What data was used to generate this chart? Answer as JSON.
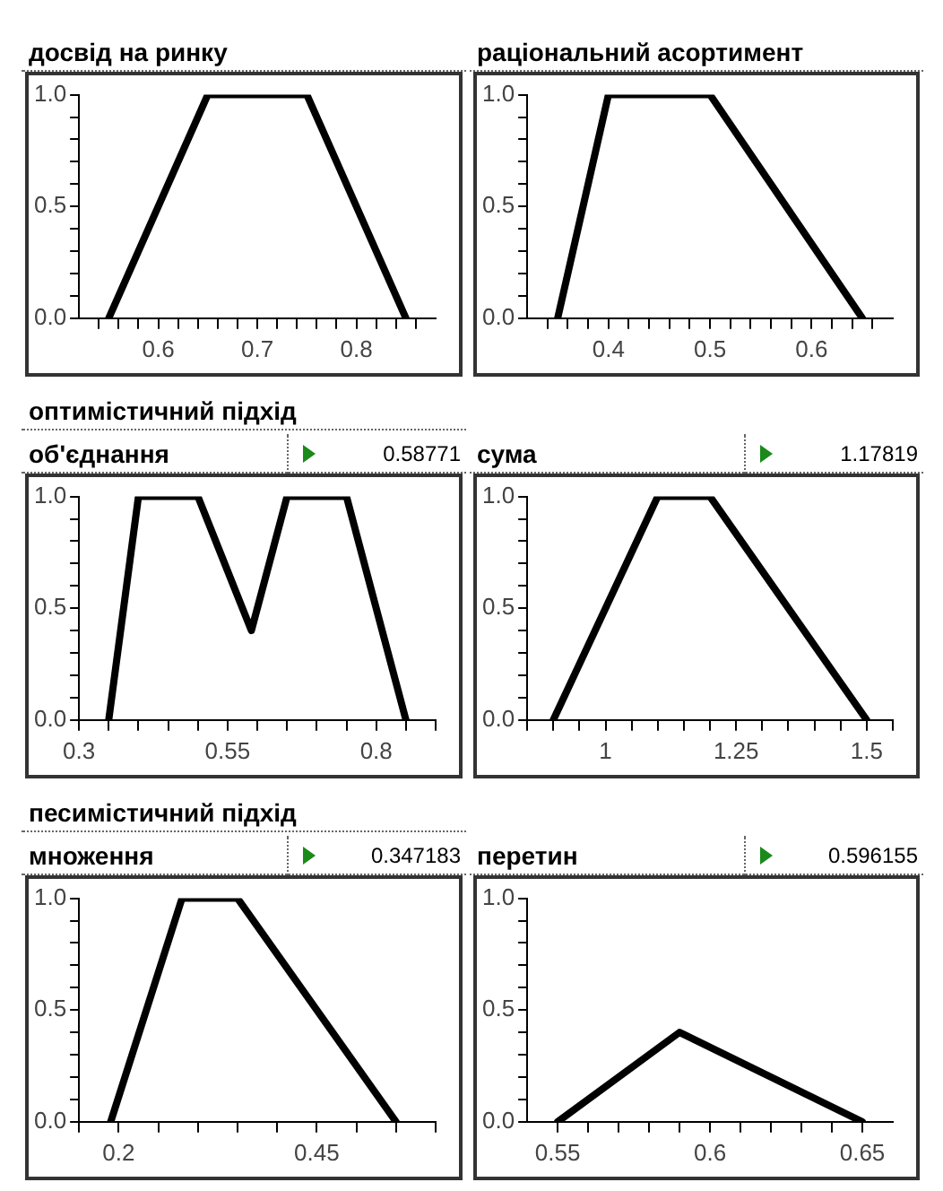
{
  "chart_data": [
    {
      "type": "line",
      "title": "досвід на ринку",
      "x": [
        0.55,
        0.65,
        0.75,
        0.85
      ],
      "values": [
        0,
        1,
        1,
        0
      ],
      "color": "#000000",
      "xlim": [
        0.52,
        0.88
      ],
      "xticks": [
        {
          "value": 0.54,
          "label": null
        },
        {
          "value": 0.56,
          "label": null
        },
        {
          "value": 0.58,
          "label": null
        },
        {
          "value": 0.6,
          "label": "0.6"
        },
        {
          "value": 0.62,
          "label": null
        },
        {
          "value": 0.64,
          "label": null
        },
        {
          "value": 0.66,
          "label": null
        },
        {
          "value": 0.68,
          "label": null
        },
        {
          "value": 0.7,
          "label": "0.7"
        },
        {
          "value": 0.72,
          "label": null
        },
        {
          "value": 0.74,
          "label": null
        },
        {
          "value": 0.76,
          "label": null
        },
        {
          "value": 0.78,
          "label": null
        },
        {
          "value": 0.8,
          "label": "0.8"
        },
        {
          "value": 0.82,
          "label": null
        },
        {
          "value": 0.84,
          "label": null
        },
        {
          "value": 0.86,
          "label": null
        }
      ],
      "ylim": [
        0,
        1
      ],
      "yticks": [
        {
          "value": 0,
          "label": "0.0"
        },
        {
          "value": 0.1,
          "label": null
        },
        {
          "value": 0.2,
          "label": null
        },
        {
          "value": 0.3,
          "label": null
        },
        {
          "value": 0.4,
          "label": null
        },
        {
          "value": 0.5,
          "label": "0.5"
        },
        {
          "value": 0.6,
          "label": null
        },
        {
          "value": 0.7,
          "label": null
        },
        {
          "value": 0.8,
          "label": null
        },
        {
          "value": 0.9,
          "label": null
        },
        {
          "value": 1,
          "label": "1.0"
        }
      ],
      "grid": false,
      "legend": false,
      "marker": "none",
      "line_style": "solid"
    },
    {
      "type": "line",
      "title": "раціональний асортимент",
      "x": [
        0.35,
        0.4,
        0.5,
        0.65
      ],
      "values": [
        0,
        1,
        1,
        0
      ],
      "color": "#000000",
      "xlim": [
        0.32,
        0.68
      ],
      "xticks": [
        {
          "value": 0.34,
          "label": null
        },
        {
          "value": 0.36,
          "label": null
        },
        {
          "value": 0.38,
          "label": null
        },
        {
          "value": 0.4,
          "label": "0.4"
        },
        {
          "value": 0.42,
          "label": null
        },
        {
          "value": 0.44,
          "label": null
        },
        {
          "value": 0.46,
          "label": null
        },
        {
          "value": 0.48,
          "label": null
        },
        {
          "value": 0.5,
          "label": "0.5"
        },
        {
          "value": 0.52,
          "label": null
        },
        {
          "value": 0.54,
          "label": null
        },
        {
          "value": 0.56,
          "label": null
        },
        {
          "value": 0.58,
          "label": null
        },
        {
          "value": 0.6,
          "label": "0.6"
        },
        {
          "value": 0.62,
          "label": null
        },
        {
          "value": 0.64,
          "label": null
        },
        {
          "value": 0.66,
          "label": null
        }
      ],
      "ylim": [
        0,
        1
      ],
      "yticks": [
        {
          "value": 0,
          "label": "0.0"
        },
        {
          "value": 0.1,
          "label": null
        },
        {
          "value": 0.2,
          "label": null
        },
        {
          "value": 0.3,
          "label": null
        },
        {
          "value": 0.4,
          "label": null
        },
        {
          "value": 0.5,
          "label": "0.5"
        },
        {
          "value": 0.6,
          "label": null
        },
        {
          "value": 0.7,
          "label": null
        },
        {
          "value": 0.8,
          "label": null
        },
        {
          "value": 0.9,
          "label": null
        },
        {
          "value": 1,
          "label": "1.0"
        }
      ],
      "grid": false,
      "legend": false,
      "marker": "none",
      "line_style": "solid"
    },
    {
      "type": "line",
      "subtitle": "оптимістичний підхід",
      "title": "об'єднання",
      "annotations": [
        "0.58771"
      ],
      "x": [
        0.35,
        0.4,
        0.5,
        0.59,
        0.65,
        0.75,
        0.85
      ],
      "values": [
        0,
        1,
        1,
        0.4,
        1,
        1,
        0
      ],
      "color": "#000000",
      "xlim": [
        0.3,
        0.9
      ],
      "xticks": [
        {
          "value": 0.3,
          "label": "0.3"
        },
        {
          "value": 0.35,
          "label": null
        },
        {
          "value": 0.4,
          "label": null
        },
        {
          "value": 0.45,
          "label": null
        },
        {
          "value": 0.5,
          "label": null
        },
        {
          "value": 0.55,
          "label": "0.55"
        },
        {
          "value": 0.6,
          "label": null
        },
        {
          "value": 0.65,
          "label": null
        },
        {
          "value": 0.7,
          "label": null
        },
        {
          "value": 0.75,
          "label": null
        },
        {
          "value": 0.8,
          "label": "0.8"
        },
        {
          "value": 0.85,
          "label": null
        },
        {
          "value": 0.9,
          "label": null
        }
      ],
      "ylim": [
        0,
        1
      ],
      "yticks": [
        {
          "value": 0,
          "label": "0.0"
        },
        {
          "value": 0.1,
          "label": null
        },
        {
          "value": 0.2,
          "label": null
        },
        {
          "value": 0.3,
          "label": null
        },
        {
          "value": 0.4,
          "label": null
        },
        {
          "value": 0.5,
          "label": "0.5"
        },
        {
          "value": 0.6,
          "label": null
        },
        {
          "value": 0.7,
          "label": null
        },
        {
          "value": 0.8,
          "label": null
        },
        {
          "value": 0.9,
          "label": null
        },
        {
          "value": 1,
          "label": "1.0"
        }
      ],
      "grid": false,
      "legend": false,
      "marker": "none",
      "line_style": "solid"
    },
    {
      "type": "line",
      "title": "сума",
      "annotations": [
        "1.17819"
      ],
      "x": [
        0.9,
        1.1,
        1.2,
        1.5
      ],
      "values": [
        0,
        1,
        1,
        0
      ],
      "color": "#000000",
      "xlim": [
        0.85,
        1.55
      ],
      "xticks": [
        {
          "value": 0.85,
          "label": null
        },
        {
          "value": 0.9,
          "label": null
        },
        {
          "value": 0.95,
          "label": null
        },
        {
          "value": 1,
          "label": "1"
        },
        {
          "value": 1.05,
          "label": null
        },
        {
          "value": 1.1,
          "label": null
        },
        {
          "value": 1.15,
          "label": null
        },
        {
          "value": 1.2,
          "label": null
        },
        {
          "value": 1.25,
          "label": "1.25"
        },
        {
          "value": 1.3,
          "label": null
        },
        {
          "value": 1.35,
          "label": null
        },
        {
          "value": 1.4,
          "label": null
        },
        {
          "value": 1.45,
          "label": null
        },
        {
          "value": 1.5,
          "label": "1.5"
        },
        {
          "value": 1.55,
          "label": null
        }
      ],
      "ylim": [
        0,
        1
      ],
      "yticks": [
        {
          "value": 0,
          "label": "0.0"
        },
        {
          "value": 0.1,
          "label": null
        },
        {
          "value": 0.2,
          "label": null
        },
        {
          "value": 0.3,
          "label": null
        },
        {
          "value": 0.4,
          "label": null
        },
        {
          "value": 0.5,
          "label": "0.5"
        },
        {
          "value": 0.6,
          "label": null
        },
        {
          "value": 0.7,
          "label": null
        },
        {
          "value": 0.8,
          "label": null
        },
        {
          "value": 0.9,
          "label": null
        },
        {
          "value": 1,
          "label": "1.0"
        }
      ],
      "grid": false,
      "legend": false,
      "marker": "none",
      "line_style": "solid"
    },
    {
      "type": "line",
      "subtitle": "песимістичний підхід",
      "title": "множення",
      "annotations": [
        "0.347183"
      ],
      "x": [
        0.19,
        0.28,
        0.35,
        0.55
      ],
      "values": [
        0,
        1,
        1,
        0
      ],
      "color": "#000000",
      "xlim": [
        0.15,
        0.6
      ],
      "xticks": [
        {
          "value": 0.15,
          "label": null
        },
        {
          "value": 0.2,
          "label": "0.2"
        },
        {
          "value": 0.25,
          "label": null
        },
        {
          "value": 0.3,
          "label": null
        },
        {
          "value": 0.35,
          "label": null
        },
        {
          "value": 0.4,
          "label": null
        },
        {
          "value": 0.45,
          "label": "0.45"
        },
        {
          "value": 0.5,
          "label": null
        },
        {
          "value": 0.55,
          "label": null
        },
        {
          "value": 0.6,
          "label": null
        }
      ],
      "ylim": [
        0,
        1
      ],
      "yticks": [
        {
          "value": 0,
          "label": "0.0"
        },
        {
          "value": 0.1,
          "label": null
        },
        {
          "value": 0.2,
          "label": null
        },
        {
          "value": 0.3,
          "label": null
        },
        {
          "value": 0.4,
          "label": null
        },
        {
          "value": 0.5,
          "label": "0.5"
        },
        {
          "value": 0.6,
          "label": null
        },
        {
          "value": 0.7,
          "label": null
        },
        {
          "value": 0.8,
          "label": null
        },
        {
          "value": 0.9,
          "label": null
        },
        {
          "value": 1,
          "label": "1.0"
        }
      ],
      "grid": false,
      "legend": false,
      "marker": "none",
      "line_style": "solid"
    },
    {
      "type": "line",
      "title": "перетин",
      "annotations": [
        "0.596155"
      ],
      "x": [
        0.55,
        0.59,
        0.65
      ],
      "values": [
        0,
        0.4,
        0
      ],
      "color": "#000000",
      "xlim": [
        0.54,
        0.66
      ],
      "xticks": [
        {
          "value": 0.55,
          "label": "0.55"
        },
        {
          "value": 0.56,
          "label": null
        },
        {
          "value": 0.57,
          "label": null
        },
        {
          "value": 0.58,
          "label": null
        },
        {
          "value": 0.59,
          "label": null
        },
        {
          "value": 0.6,
          "label": "0.6"
        },
        {
          "value": 0.61,
          "label": null
        },
        {
          "value": 0.62,
          "label": null
        },
        {
          "value": 0.63,
          "label": null
        },
        {
          "value": 0.64,
          "label": null
        },
        {
          "value": 0.65,
          "label": "0.65"
        }
      ],
      "ylim": [
        0,
        1
      ],
      "yticks": [
        {
          "value": 0,
          "label": "0.0"
        },
        {
          "value": 0.1,
          "label": null
        },
        {
          "value": 0.2,
          "label": null
        },
        {
          "value": 0.3,
          "label": null
        },
        {
          "value": 0.4,
          "label": null
        },
        {
          "value": 0.5,
          "label": "0.5"
        },
        {
          "value": 0.6,
          "label": null
        },
        {
          "value": 0.7,
          "label": null
        },
        {
          "value": 0.8,
          "label": null
        },
        {
          "value": 0.9,
          "label": null
        },
        {
          "value": 1,
          "label": "1.0"
        }
      ],
      "grid": false,
      "legend": false,
      "marker": "none",
      "line_style": "solid"
    }
  ]
}
